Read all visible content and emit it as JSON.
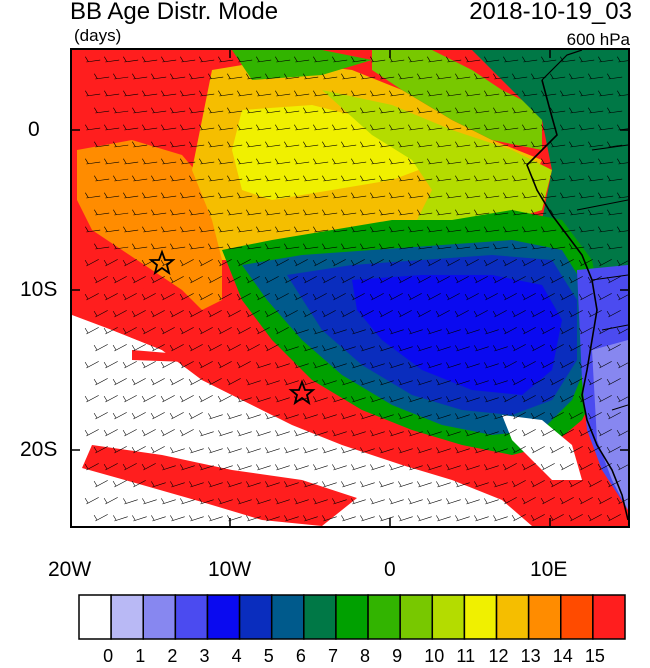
{
  "header": {
    "title": "BB Age Distr. Mode",
    "units": "(days)",
    "datetime": "2018-10-19_03",
    "level": "600 hPa"
  },
  "axes": {
    "lat_labels": [
      "0",
      "10S",
      "20S"
    ],
    "lon_labels": [
      "20W",
      "10W",
      "0",
      "10E"
    ]
  },
  "colorbar": {
    "labels": [
      "0",
      "1",
      "2",
      "3",
      "4",
      "5",
      "6",
      "7",
      "8",
      "9",
      "10",
      "11",
      "12",
      "13",
      "14",
      "15"
    ],
    "colors": [
      "#ffffff",
      "#b9b9f5",
      "#8787f0",
      "#4b4bf0",
      "#0a0af0",
      "#0a2dbe",
      "#005a8c",
      "#007846",
      "#00a000",
      "#32b400",
      "#78c800",
      "#b4dc00",
      "#f0f000",
      "#f5be00",
      "#ff8c00",
      "#ff4b00",
      "#ff1e1e"
    ]
  },
  "markers": [
    "star",
    "star"
  ]
}
